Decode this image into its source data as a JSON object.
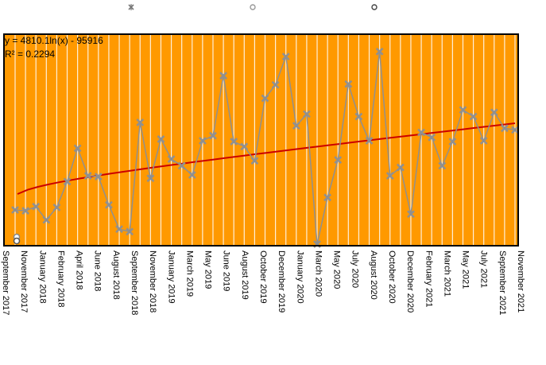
{
  "chart_data": {
    "type": "line",
    "title": "",
    "xlabel": "",
    "ylabel": "",
    "plot_background": "#ff9900",
    "gridlines": "vertical white",
    "grid": true,
    "legend_placement": "top",
    "series": [
      {
        "marker": "x",
        "color": "#909090",
        "points": [
          {
            "x": "September 2017",
            "y": 1300
          },
          {
            "x": "October 2017",
            "y": 1200
          },
          {
            "x": "November 2017",
            "y": 1700
          },
          {
            "x": "December 2017",
            "y": 100
          },
          {
            "x": "January 2018",
            "y": 1600
          },
          {
            "x": "February 2018",
            "y": 4700
          },
          {
            "x": "March 2018",
            "y": 8700
          },
          {
            "x": "April 2018",
            "y": 5400
          },
          {
            "x": "May 2018",
            "y": 5300
          },
          {
            "x": "June 2018",
            "y": 1900
          },
          {
            "x": "July 2018",
            "y": -1000
          },
          {
            "x": "August 2018",
            "y": -1300
          },
          {
            "x": "September 2018",
            "y": 11800
          },
          {
            "x": "October 2018",
            "y": 5100
          },
          {
            "x": "November 2018",
            "y": 9800
          },
          {
            "x": "December 2018",
            "y": 7400
          },
          {
            "x": "January 2019",
            "y": 6600
          },
          {
            "x": "February 2019",
            "y": 5500
          },
          {
            "x": "March 2019",
            "y": 9600
          },
          {
            "x": "April 2019",
            "y": 10200
          },
          {
            "x": "May 2019",
            "y": 17400
          },
          {
            "x": "June 2019",
            "y": 9500
          },
          {
            "x": "July 2019",
            "y": 8900
          },
          {
            "x": "August 2019",
            "y": 7200
          },
          {
            "x": "September 2019",
            "y": 14700
          },
          {
            "x": "October 2019",
            "y": 16300
          },
          {
            "x": "November 2019",
            "y": 19700
          },
          {
            "x": "December 2019",
            "y": 11400
          },
          {
            "x": "January 2020",
            "y": 12800
          },
          {
            "x": "February 2020",
            "y": -2800
          },
          {
            "x": "March 2020",
            "y": 2800
          },
          {
            "x": "April 2020",
            "y": 7300
          },
          {
            "x": "May 2020",
            "y": 16400
          },
          {
            "x": "June 2020",
            "y": 12500
          },
          {
            "x": "July 2020",
            "y": 9600
          },
          {
            "x": "August 2020",
            "y": 20300
          },
          {
            "x": "September 2020",
            "y": 5400
          },
          {
            "x": "October 2020",
            "y": 6400
          },
          {
            "x": "November 2020",
            "y": 800
          },
          {
            "x": "December 2020",
            "y": 10600
          },
          {
            "x": "January 2021",
            "y": 10000
          },
          {
            "x": "February 2021",
            "y": 6600
          },
          {
            "x": "March 2021",
            "y": 9500
          },
          {
            "x": "April 2021",
            "y": 13300
          },
          {
            "x": "May 2021",
            "y": 12500
          },
          {
            "x": "June 2021",
            "y": 9600
          },
          {
            "x": "July 2021",
            "y": 13000
          },
          {
            "x": "August 2021",
            "y": 11100
          },
          {
            "x": "September 2021",
            "y": 10900
          }
        ]
      }
    ],
    "trendline": {
      "color": "#cc0000",
      "equation": "y = 4810.1ln(x) - 95916",
      "r_squared": "R² = 0.2294"
    },
    "legend_markers": [
      "x",
      "o",
      "o"
    ],
    "x_tick_labels": [
      "September 2017",
      "November 2017",
      "January 2018",
      "February 2018",
      "April 2018",
      "June 2018",
      "August 2018",
      "September 2018",
      "November 2018",
      "January 2019",
      "March 2019",
      "May 2019",
      "June 2019",
      "August 2019",
      "October 2019",
      "December 2019",
      "January 2020",
      "March 2020",
      "May 2020",
      "July 2020",
      "August 2020",
      "October 2020",
      "December 2020",
      "February 2021",
      "March 2021",
      "May 2021",
      "July 2021",
      "September 2021",
      "November 2021"
    ],
    "ylim": [
      -2800,
      22000
    ]
  }
}
